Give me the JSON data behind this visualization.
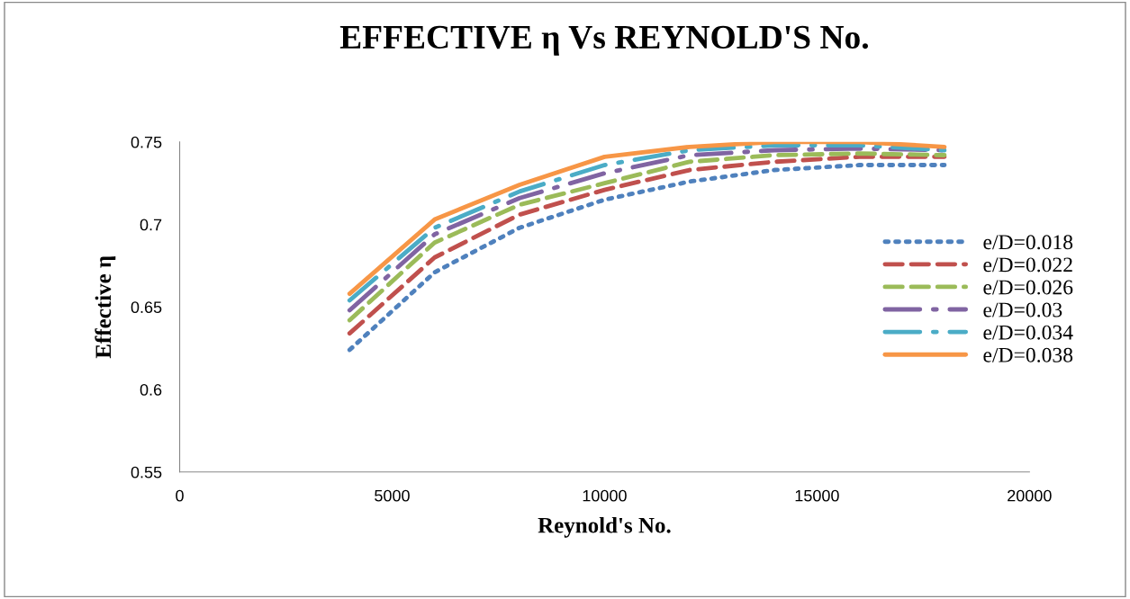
{
  "chart_data": {
    "type": "line",
    "title": "EFFECTIVE η Vs REYNOLD'S No.",
    "xlabel": "Reynold's No.",
    "ylabel": "Effective η",
    "x": [
      4000,
      6000,
      8000,
      10000,
      12000,
      14000,
      16000,
      18000
    ],
    "xlim": [
      0,
      20000
    ],
    "xticks": [
      0,
      5000,
      10000,
      15000,
      20000
    ],
    "ylim": [
      0.55,
      0.75
    ],
    "yticks": [
      0.55,
      0.6,
      0.65,
      0.7,
      0.75
    ],
    "grid": false,
    "legend": "right",
    "marker": "none",
    "series": [
      {
        "name": "e/D=0.018",
        "color": "#4f81bd",
        "line_style": "dotted",
        "values": [
          0.624,
          0.671,
          0.698,
          0.715,
          0.726,
          0.733,
          0.736,
          0.736
        ]
      },
      {
        "name": "e/D=0.022",
        "color": "#c0504d",
        "line_style": "dashed",
        "values": [
          0.634,
          0.68,
          0.706,
          0.721,
          0.733,
          0.738,
          0.741,
          0.741
        ]
      },
      {
        "name": "e/D=0.026",
        "color": "#9bbb59",
        "line_style": "dashed",
        "values": [
          0.642,
          0.689,
          0.712,
          0.725,
          0.738,
          0.742,
          0.743,
          0.742
        ]
      },
      {
        "name": "e/D=0.03",
        "color": "#8064a2",
        "line_style": "dashdot",
        "values": [
          0.648,
          0.694,
          0.716,
          0.731,
          0.742,
          0.745,
          0.746,
          0.745
        ]
      },
      {
        "name": "e/D=0.034",
        "color": "#4bacc6",
        "line_style": "dashdot",
        "values": [
          0.654,
          0.698,
          0.72,
          0.736,
          0.745,
          0.748,
          0.748,
          0.745
        ]
      },
      {
        "name": "e/D=0.038",
        "color": "#f79646",
        "line_style": "solid",
        "values": [
          0.658,
          0.703,
          0.724,
          0.741,
          0.747,
          0.75,
          0.75,
          0.747
        ]
      }
    ]
  }
}
